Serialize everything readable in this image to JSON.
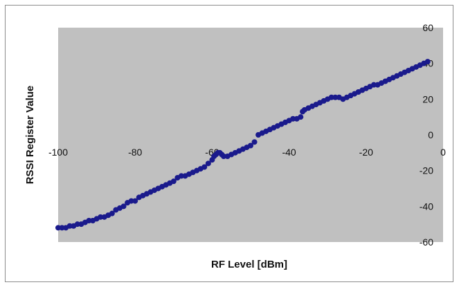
{
  "chart_data": {
    "type": "scatter",
    "title": "",
    "xlabel": "RF Level [dBm]",
    "ylabel": "RSSI Register Value",
    "xlim": [
      -100,
      0
    ],
    "ylim": [
      -60,
      60
    ],
    "x_ticks": [
      -100,
      -80,
      -60,
      -40,
      -20,
      0
    ],
    "y_ticks": [
      60,
      40,
      20,
      0,
      -20,
      -40,
      -60
    ],
    "grid": false,
    "plot_background": "#c0c0c0",
    "marker_color": "#1a1a8c",
    "series": [
      {
        "points": [
          [
            -100,
            -52
          ],
          [
            -99,
            -52
          ],
          [
            -98,
            -52
          ],
          [
            -97,
            -51
          ],
          [
            -96,
            -51
          ],
          [
            -95,
            -50
          ],
          [
            -94,
            -50
          ],
          [
            -93,
            -49
          ],
          [
            -92,
            -48
          ],
          [
            -91,
            -48
          ],
          [
            -90,
            -47
          ],
          [
            -89,
            -46
          ],
          [
            -88,
            -46
          ],
          [
            -87,
            -45
          ],
          [
            -86,
            -44
          ],
          [
            -85,
            -42
          ],
          [
            -84,
            -41
          ],
          [
            -83,
            -40
          ],
          [
            -82,
            -38
          ],
          [
            -81,
            -37
          ],
          [
            -80,
            -37
          ],
          [
            -79,
            -35
          ],
          [
            -78,
            -34
          ],
          [
            -77,
            -33
          ],
          [
            -76,
            -32
          ],
          [
            -75,
            -31
          ],
          [
            -74,
            -30
          ],
          [
            -73,
            -29
          ],
          [
            -72,
            -28
          ],
          [
            -71,
            -27
          ],
          [
            -70,
            -26
          ],
          [
            -69,
            -24
          ],
          [
            -68,
            -23
          ],
          [
            -67,
            -23
          ],
          [
            -66,
            -22
          ],
          [
            -65,
            -21
          ],
          [
            -64,
            -20
          ],
          [
            -63,
            -19
          ],
          [
            -62,
            -18
          ],
          [
            -61,
            -16
          ],
          [
            -60,
            -14
          ],
          [
            -59.5,
            -12
          ],
          [
            -59,
            -11
          ],
          [
            -58.5,
            -10
          ],
          [
            -58,
            -10
          ],
          [
            -57.5,
            -11
          ],
          [
            -57,
            -12
          ],
          [
            -56,
            -12
          ],
          [
            -55,
            -11
          ],
          [
            -54,
            -10
          ],
          [
            -53,
            -9
          ],
          [
            -52,
            -8
          ],
          [
            -51,
            -7
          ],
          [
            -50,
            -6
          ],
          [
            -49,
            -4
          ],
          [
            -48,
            0
          ],
          [
            -47,
            1
          ],
          [
            -46,
            2
          ],
          [
            -45,
            3
          ],
          [
            -44,
            4
          ],
          [
            -43,
            5
          ],
          [
            -42,
            6
          ],
          [
            -41,
            7
          ],
          [
            -40,
            8
          ],
          [
            -39,
            9
          ],
          [
            -38,
            9
          ],
          [
            -37,
            10
          ],
          [
            -36.5,
            13
          ],
          [
            -36,
            14
          ],
          [
            -35,
            15
          ],
          [
            -34,
            16
          ],
          [
            -33,
            17
          ],
          [
            -32,
            18
          ],
          [
            -31,
            19
          ],
          [
            -30,
            20
          ],
          [
            -29,
            21
          ],
          [
            -28,
            21
          ],
          [
            -27,
            21
          ],
          [
            -26,
            20
          ],
          [
            -25,
            21
          ],
          [
            -24,
            22
          ],
          [
            -23,
            23
          ],
          [
            -22,
            24
          ],
          [
            -21,
            25
          ],
          [
            -20,
            26
          ],
          [
            -19,
            27
          ],
          [
            -18,
            28
          ],
          [
            -17,
            28
          ],
          [
            -16,
            29
          ],
          [
            -15,
            30
          ],
          [
            -14,
            31
          ],
          [
            -13,
            32
          ],
          [
            -12,
            33
          ],
          [
            -11,
            34
          ],
          [
            -10,
            35
          ],
          [
            -9,
            36
          ],
          [
            -8,
            37
          ],
          [
            -7,
            38
          ],
          [
            -6,
            39
          ],
          [
            -5,
            40
          ],
          [
            -4,
            41
          ]
        ]
      }
    ]
  }
}
